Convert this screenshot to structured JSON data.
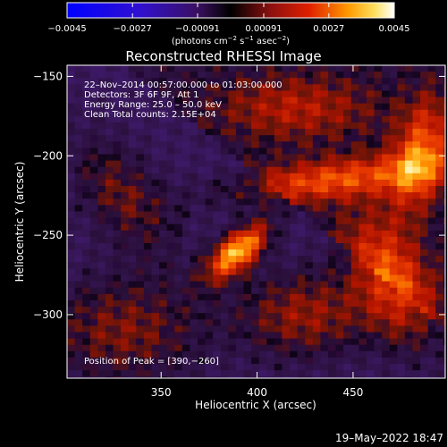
{
  "chart_data": {
    "type": "heatmap",
    "title": "Reconstructed RHESSI Image",
    "xlabel": "Heliocentric X (arcsec)",
    "ylabel": "Heliocentric Y (arcsec)",
    "xlim": [
      301,
      498
    ],
    "ylim": [
      -340,
      -143
    ],
    "x_ticks": [
      350,
      400,
      450
    ],
    "x_tick_labels": [
      "350",
      "400",
      "450"
    ],
    "y_ticks": [
      -150,
      -200,
      -250,
      -300
    ],
    "y_tick_labels": [
      "−150",
      "−200",
      "−250",
      "−300"
    ],
    "colorbar": {
      "range": [
        -0.0045,
        0.0045
      ],
      "tick_values": [
        -0.0045,
        -0.0027,
        -0.00091,
        0.00091,
        0.0027,
        0.0045
      ],
      "tick_labels": [
        "−0.0045",
        "−0.0027",
        "−0.00091",
        "0.00091",
        "0.0027",
        "0.0045"
      ],
      "units_main": "(photons cm",
      "units_exp1": "−2",
      "units_mid": " s",
      "units_exp2": "−1",
      "units_mid2": " asec",
      "units_exp3": "−2",
      "units_end": ")"
    },
    "annotations": [
      "22–Nov–2014 00:57:00.000 to 01:03:00.000",
      "Detectors: 3F 6F 9F, Att 1",
      "Energy Range: 25.0 – 50.0 keV",
      "Clean    Total counts: 2.15E+04"
    ],
    "peak_label": "Position of Peak = [390,−260]",
    "peak": {
      "x": 390,
      "y": -260,
      "value": 0.0045
    },
    "sources": [
      {
        "x": 390,
        "y": -260,
        "sx": 7,
        "sy": 15,
        "angle_deg": -40,
        "amp": 1.0
      },
      {
        "x": 440,
        "y": -215,
        "sx": 40,
        "sy": 9,
        "angle_deg": 8,
        "amp": 0.55
      },
      {
        "x": 470,
        "y": -280,
        "sx": 14,
        "sy": 30,
        "angle_deg": 20,
        "amp": 0.6
      },
      {
        "x": 485,
        "y": -200,
        "sx": 10,
        "sy": 25,
        "angle_deg": -10,
        "amp": 0.62
      },
      {
        "x": 425,
        "y": -300,
        "sx": 25,
        "sy": 20,
        "angle_deg": 0,
        "amp": 0.45
      },
      {
        "x": 330,
        "y": -310,
        "sx": 30,
        "sy": 25,
        "angle_deg": 0,
        "amp": 0.4
      },
      {
        "x": 420,
        "y": -170,
        "sx": 30,
        "sy": 15,
        "angle_deg": 0,
        "amp": 0.35
      },
      {
        "x": 330,
        "y": -225,
        "sx": 15,
        "sy": 30,
        "angle_deg": 30,
        "amp": 0.35
      }
    ],
    "grid": false
  },
  "footer": {
    "date": "19–May–2022 18:47"
  }
}
